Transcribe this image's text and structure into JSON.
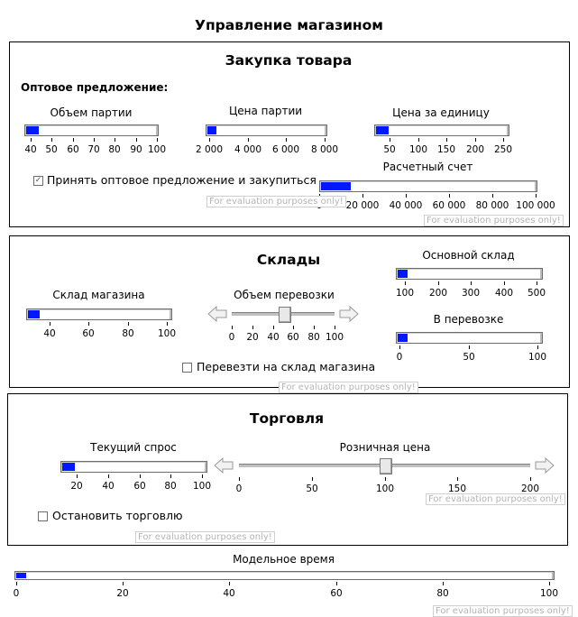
{
  "title": "Управление  магазином",
  "purchase": {
    "title": "Закупка товара",
    "offer_heading": "Оптовое предложение:",
    "lot_volume": {
      "label": "Объем партии",
      "value": 42,
      "min": 40,
      "max": 100,
      "ticks": [
        "40",
        "50",
        "60",
        "70",
        "80",
        "90",
        "100"
      ]
    },
    "lot_price": {
      "label": "Цена партии",
      "value": 2050,
      "min": 2000,
      "max": 8000,
      "ticks": [
        "2 000",
        "4 000",
        "6 000",
        "8 000"
      ]
    },
    "unit_price": {
      "label": "Цена за единицу",
      "value": 47,
      "min": 40,
      "max": 250,
      "ticks": [
        "50",
        "100",
        "150",
        "200",
        "250"
      ]
    },
    "accept_checkbox": {
      "label": "Принять оптовое предложение и закупиться",
      "checked": true
    },
    "account": {
      "label": "Расчетный счет",
      "value": 10000,
      "min": 0,
      "max": 100000,
      "ticks": [
        "0",
        "20 000",
        "40 000",
        "60 000",
        "80 000",
        "100 000"
      ]
    }
  },
  "warehouses": {
    "title": "Склады",
    "store_warehouse": {
      "label": "Склад магазина",
      "value": 30,
      "min": 28,
      "max": 100,
      "ticks": [
        "40",
        "60",
        "80",
        "100"
      ]
    },
    "transfer_volume": {
      "label": "Объем перевозки",
      "value": 52,
      "min": 0,
      "max": 100,
      "ticks": [
        "0",
        "20",
        "40",
        "60",
        "80",
        "100"
      ]
    },
    "main_warehouse": {
      "label": "Основной склад",
      "value": 100,
      "min": 95,
      "max": 500,
      "ticks": [
        "100",
        "200",
        "300",
        "400",
        "500"
      ]
    },
    "in_transit": {
      "label": "В перевозке",
      "value": 1,
      "min": 0,
      "max": 100,
      "ticks": [
        "0",
        "50",
        "100"
      ]
    },
    "transfer_checkbox": {
      "label": "Перевезти на склад магазина",
      "checked": false
    }
  },
  "trade": {
    "title": "Торговля",
    "current_demand": {
      "label": "Текущий спрос",
      "value": 13,
      "min": 10,
      "max": 100,
      "ticks": [
        "20",
        "40",
        "60",
        "80",
        "100"
      ]
    },
    "retail_price": {
      "label": "Розничная цена",
      "value": 101,
      "min": 0,
      "max": 200,
      "ticks": [
        "0",
        "50",
        "100",
        "150",
        "200"
      ]
    },
    "stop_checkbox": {
      "label": "Остановить торговлю",
      "checked": false
    }
  },
  "model_time": {
    "label": "Модельное время",
    "value": 0.3,
    "min": 0,
    "max": 100,
    "ticks": [
      "0",
      "20",
      "40",
      "60",
      "80",
      "100"
    ]
  },
  "watermark": "For evaluation purposes only!",
  "icons": {
    "arrow_left": "arrow-left-icon",
    "arrow_right": "arrow-right-icon",
    "checkmark": "checkmark-icon"
  },
  "colors": {
    "gauge_fill": "#0018ff",
    "border": "#000000",
    "watermark": "#b5b5b5"
  }
}
